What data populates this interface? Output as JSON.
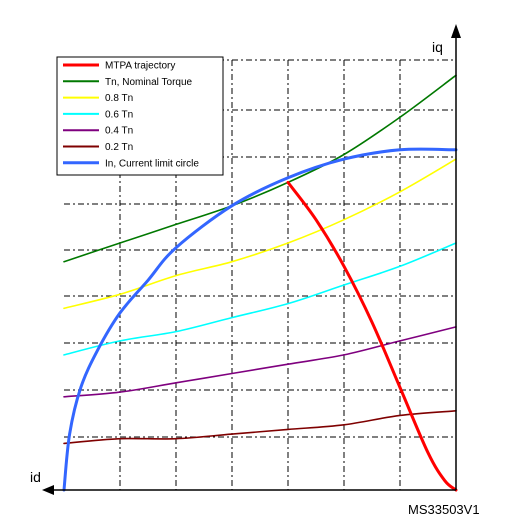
{
  "chart_data": {
    "type": "line",
    "title": "",
    "xlabel": "id",
    "ylabel": "iq",
    "reference": "MS33503V1",
    "xlim": [
      -7,
      0
    ],
    "ylim": [
      0,
      10
    ],
    "grid": true,
    "legend_position": "top-left",
    "series": [
      {
        "name": "MTPA trajectory",
        "color": "#ff0000",
        "x": [
          -3.0,
          -2.5,
          -2.0,
          -1.5,
          -1.0,
          -0.5,
          -0.2,
          0.0
        ],
        "y": [
          6.6,
          5.8,
          4.8,
          3.6,
          2.2,
          0.8,
          0.2,
          0.0
        ]
      },
      {
        "name": "Tn, Nominal Torque",
        "color": "#007800",
        "x": [
          -7.0,
          -6.0,
          -5.0,
          -4.0,
          -3.0,
          -2.0,
          -1.0,
          0.0
        ],
        "y": [
          4.9,
          5.3,
          5.7,
          6.1,
          6.6,
          7.2,
          8.0,
          8.9
        ]
      },
      {
        "name": "0.8 Tn",
        "color": "#ffff00",
        "x": [
          -7.0,
          -6.0,
          -5.0,
          -4.0,
          -3.0,
          -2.0,
          -1.0,
          0.0
        ],
        "y": [
          3.9,
          4.2,
          4.6,
          4.9,
          5.3,
          5.8,
          6.4,
          7.1
        ]
      },
      {
        "name": "0.6 Tn",
        "color": "#00ffff",
        "x": [
          -7.0,
          -6.0,
          -5.0,
          -4.0,
          -3.0,
          -2.0,
          -1.0,
          0.0
        ],
        "y": [
          2.9,
          3.2,
          3.4,
          3.7,
          4.0,
          4.4,
          4.8,
          5.3
        ]
      },
      {
        "name": "0.4 Tn",
        "color": "#7f007f",
        "x": [
          -7.0,
          -6.0,
          -5.0,
          -4.0,
          -3.0,
          -2.0,
          -1.0,
          0.0
        ],
        "y": [
          2.0,
          2.1,
          2.3,
          2.5,
          2.7,
          2.9,
          3.2,
          3.5
        ]
      },
      {
        "name": "0.2 Tn",
        "color": "#7f0000",
        "x": [
          -7.0,
          -6.0,
          -5.0,
          -4.0,
          -3.0,
          -2.0,
          -1.0,
          0.0
        ],
        "y": [
          1.0,
          1.1,
          1.1,
          1.2,
          1.3,
          1.4,
          1.6,
          1.7
        ]
      },
      {
        "name": "In, Current limit circle",
        "color": "#3366ff",
        "x": [
          -7.0,
          -6.9,
          -6.7,
          -6.4,
          -6.0,
          -5.5,
          -5.0,
          -4.0,
          -3.0,
          -2.0,
          -1.0,
          0.0
        ],
        "y": [
          0.0,
          1.2,
          2.2,
          3.0,
          3.8,
          4.5,
          5.2,
          6.1,
          6.7,
          7.1,
          7.3,
          7.3
        ]
      }
    ]
  }
}
